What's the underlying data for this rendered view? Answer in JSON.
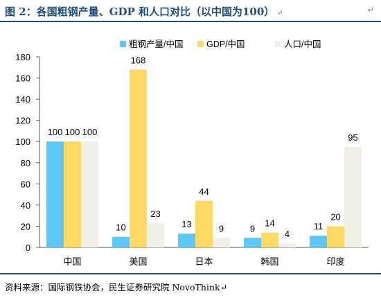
{
  "figure": {
    "title": "图 2：各国粗钢产量、GDP 和人口对比（以中国为100）",
    "paragraph_mark": "↵",
    "source": "资料来源：国际钢铁协会，民生证券研究院 NovoThink↵"
  },
  "chart_data": {
    "type": "bar",
    "title": "",
    "xlabel": "",
    "ylabel": "",
    "categories": [
      "中国",
      "美国",
      "日本",
      "韩国",
      "印度"
    ],
    "series": [
      {
        "name": "粗钢产量/中国",
        "color": "#5bc8f5",
        "values": [
          100,
          10,
          13,
          9,
          11
        ]
      },
      {
        "name": "GDP/中国",
        "color": "#ffd966",
        "values": [
          100,
          168,
          44,
          14,
          20
        ]
      },
      {
        "name": "人口/中国",
        "color": "#f2f0e6",
        "values": [
          100,
          23,
          9,
          4,
          95
        ]
      }
    ],
    "ylim": [
      0,
      180
    ],
    "yticks": [
      0,
      20,
      40,
      60,
      80,
      100,
      120,
      140,
      160,
      180
    ],
    "grid": false,
    "legend": "top",
    "data_labels": true
  }
}
